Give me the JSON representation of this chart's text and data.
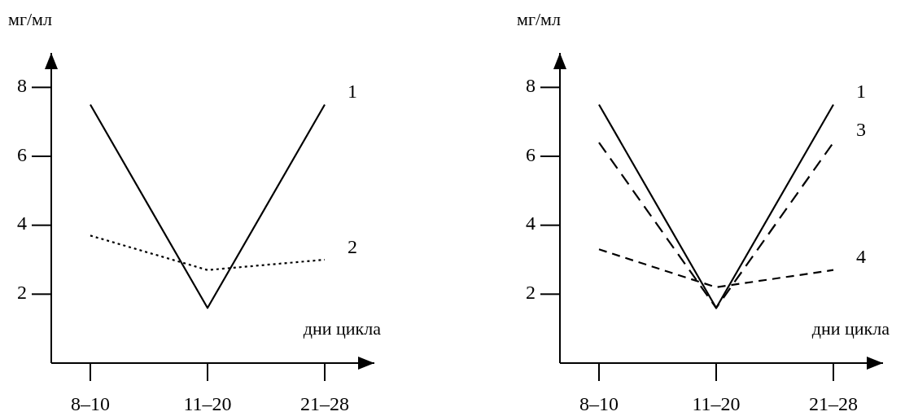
{
  "chart_data": [
    {
      "type": "line",
      "ylabel": "мг/мл",
      "xlabel": "дни цикла",
      "categories": [
        "8–10",
        "11–20",
        "21–28"
      ],
      "ylim": [
        0,
        9
      ],
      "yticks": [
        2,
        4,
        6,
        8
      ],
      "grid": false,
      "legend": false,
      "marker": "none",
      "series": [
        {
          "name": "1",
          "color": "#000000",
          "line_style": "solid",
          "values": [
            7.5,
            1.6,
            7.5
          ]
        },
        {
          "name": "2",
          "color": "#000000",
          "line_style": "dotted",
          "values": [
            3.7,
            2.7,
            3.0
          ]
        }
      ]
    },
    {
      "type": "line",
      "ylabel": "мг/мл",
      "xlabel": "дни цикла",
      "categories": [
        "8–10",
        "11–20",
        "21–28"
      ],
      "ylim": [
        0,
        9
      ],
      "yticks": [
        2,
        4,
        6,
        8
      ],
      "grid": false,
      "legend": false,
      "marker": "none",
      "series": [
        {
          "name": "1",
          "color": "#000000",
          "line_style": "solid",
          "values": [
            7.5,
            1.6,
            7.5
          ]
        },
        {
          "name": "3",
          "color": "#000000",
          "line_style": "dashed",
          "values": [
            6.4,
            1.6,
            6.4
          ]
        },
        {
          "name": "4",
          "color": "#000000",
          "line_style": "dashed",
          "values": [
            3.3,
            2.2,
            2.7
          ]
        }
      ]
    }
  ]
}
